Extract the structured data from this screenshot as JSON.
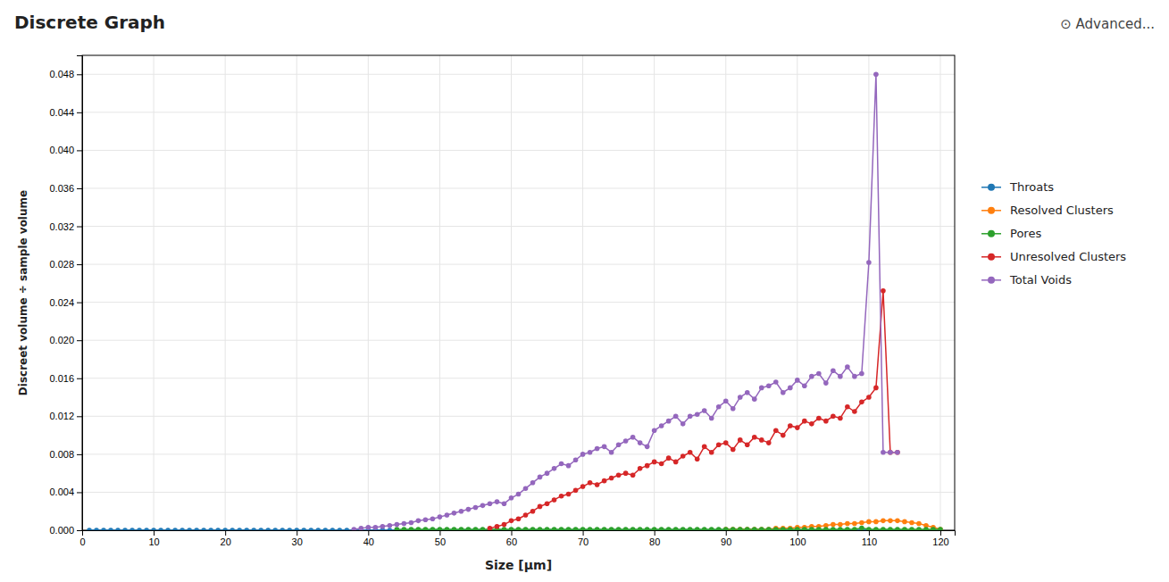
{
  "chart_data": {
    "type": "line",
    "title": "Discrete Graph",
    "annotations": [
      "⊙ Advanced..."
    ],
    "xlabel": "Size [μm]",
    "ylabel": "Discreet volume ÷ sample volume",
    "xlim": [
      0,
      122
    ],
    "ylim": [
      0,
      0.05
    ],
    "xticks": [
      0,
      10,
      20,
      30,
      40,
      50,
      60,
      70,
      80,
      90,
      100,
      110,
      120
    ],
    "yticks": [
      {
        "value": 0,
        "label": "0.000"
      },
      0.004,
      0.008,
      0.012,
      0.016,
      {
        "value": 0.02,
        "label": "0.020"
      },
      0.024,
      0.028,
      0.032,
      0.036,
      {
        "value": 0.04,
        "label": "0.040"
      },
      0.044,
      0.048
    ],
    "grid": true,
    "legend": "right",
    "marker": "circle",
    "series": [
      {
        "name": "Throats",
        "x": [
          1,
          2,
          3,
          4,
          5,
          6,
          7,
          8,
          9,
          10,
          11,
          12,
          13,
          14,
          15,
          16,
          17,
          18,
          19,
          20,
          21,
          22,
          23,
          24,
          25,
          26,
          27,
          28,
          29,
          30,
          31,
          32,
          33,
          34,
          35,
          36,
          37,
          38,
          39,
          40,
          41,
          42,
          43,
          44,
          45,
          46,
          47,
          48,
          49,
          50,
          51,
          52,
          53,
          54,
          55,
          56,
          57,
          58,
          59,
          60,
          61,
          62,
          63,
          64,
          65,
          66,
          67,
          68,
          69,
          70,
          71,
          72,
          73,
          74,
          75,
          76,
          77,
          78,
          79,
          80,
          81,
          82,
          83,
          84,
          85,
          86,
          87,
          88,
          89,
          90,
          91,
          92,
          93,
          94,
          95,
          96,
          97,
          98,
          99,
          100,
          101,
          102,
          103,
          104,
          105,
          106,
          107,
          108,
          109,
          110,
          111,
          112,
          113,
          114,
          115
        ],
        "values": [
          0,
          0,
          0,
          0,
          0,
          0,
          0,
          0,
          0,
          0,
          0,
          0,
          0,
          0,
          0,
          0,
          0,
          0,
          0,
          0,
          0,
          0,
          0,
          0,
          0,
          0,
          0,
          0,
          0,
          0,
          0,
          0,
          0,
          0,
          0,
          0,
          0,
          0,
          0,
          0,
          0,
          0,
          0,
          0,
          0,
          0,
          0,
          0,
          0,
          0,
          0,
          0,
          0,
          0,
          0,
          0,
          0,
          0,
          0,
          0,
          0,
          0,
          0,
          0,
          0,
          0,
          0,
          0,
          0,
          0,
          0,
          0,
          0,
          0,
          0,
          0,
          0,
          0,
          0,
          0,
          0,
          0,
          0,
          0,
          0,
          0,
          0,
          0,
          0,
          0,
          0,
          0,
          0,
          0,
          0,
          0,
          0,
          0,
          0,
          0,
          0,
          0,
          0,
          0,
          0,
          0,
          0,
          0,
          0,
          0,
          0,
          0,
          0,
          0,
          0
        ]
      },
      {
        "name": "Resolved Clusters",
        "x": [
          90,
          91,
          92,
          93,
          94,
          95,
          96,
          97,
          98,
          99,
          100,
          101,
          102,
          103,
          104,
          105,
          106,
          107,
          108,
          109,
          110,
          111,
          112,
          113,
          114,
          115,
          116,
          117,
          118,
          119,
          120
        ],
        "values": [
          0.0001,
          0.0001,
          0.0001,
          0.0001,
          0.0001,
          0.0001,
          0.0001,
          0.0002,
          0.0002,
          0.0002,
          0.0003,
          0.0003,
          0.0004,
          0.0004,
          0.0005,
          0.0006,
          0.0006,
          0.0007,
          0.0007,
          0.0008,
          0.0009,
          0.0009,
          0.001,
          0.001,
          0.001,
          0.0009,
          0.0008,
          0.0007,
          0.0005,
          0.0003,
          0.0001
        ]
      },
      {
        "name": "Pores",
        "x": [
          44,
          45,
          46,
          47,
          48,
          49,
          50,
          51,
          52,
          53,
          54,
          55,
          56,
          57,
          58,
          59,
          60,
          61,
          62,
          63,
          64,
          65,
          66,
          67,
          68,
          69,
          70,
          71,
          72,
          73,
          74,
          75,
          76,
          77,
          78,
          79,
          80,
          81,
          82,
          83,
          84,
          85,
          86,
          87,
          88,
          89,
          90,
          91,
          92,
          93,
          94,
          95,
          96,
          97,
          98,
          99,
          100,
          101,
          102,
          103,
          104,
          105,
          106,
          107,
          108,
          109,
          110,
          111,
          112,
          113,
          114,
          115,
          116,
          117,
          118,
          119,
          120
        ],
        "values": [
          8e-05,
          9e-05,
          9e-05,
          0.0001,
          0.0001,
          0.0001,
          0.0001,
          0.0001,
          0.0001,
          0.0001,
          0.0001,
          0.0001,
          0.0001,
          0.0001,
          0.0001,
          0.0001,
          0.0001,
          0.0001,
          0.0001,
          0.0001,
          0.0001,
          0.0001,
          0.0001,
          0.0001,
          0.0001,
          0.0001,
          0.0001,
          0.0001,
          0.0001,
          0.0001,
          0.0001,
          0.0001,
          0.0001,
          0.0001,
          0.0001,
          0.0001,
          0.0001,
          0.0001,
          0.0001,
          0.0001,
          0.0001,
          0.0001,
          0.0001,
          0.0001,
          0.0001,
          0.0001,
          0.0001,
          0.0001,
          0.0001,
          0.0001,
          0.0001,
          0.0001,
          0.0001,
          0.0001,
          0.0001,
          0.0001,
          0.0001,
          0.0001,
          0.0001,
          0.0001,
          0.0001,
          0.0001,
          0.0001,
          0.0001,
          0.0001,
          0.00023,
          0.0001,
          0.0001,
          0.0001,
          0.0001,
          0.0001,
          0.0001,
          0.0001,
          0.0001,
          0.0001,
          0.0001,
          0.0001
        ]
      },
      {
        "name": "Unresolved Clusters",
        "x": [
          57,
          58,
          59,
          60,
          61,
          62,
          63,
          64,
          65,
          66,
          67,
          68,
          69,
          70,
          71,
          72,
          73,
          74,
          75,
          76,
          77,
          78,
          79,
          80,
          81,
          82,
          83,
          84,
          85,
          86,
          87,
          88,
          89,
          90,
          91,
          92,
          93,
          94,
          95,
          96,
          97,
          98,
          99,
          100,
          101,
          102,
          103,
          104,
          105,
          106,
          107,
          108,
          109,
          110,
          111,
          112,
          113,
          114
        ],
        "values": [
          0.0002,
          0.0004,
          0.0006,
          0.001,
          0.0012,
          0.0016,
          0.002,
          0.0025,
          0.0028,
          0.0032,
          0.0036,
          0.0038,
          0.0042,
          0.0046,
          0.005,
          0.0048,
          0.0052,
          0.0055,
          0.0058,
          0.006,
          0.0058,
          0.0065,
          0.0068,
          0.0072,
          0.007,
          0.0076,
          0.0072,
          0.0078,
          0.0082,
          0.0075,
          0.0088,
          0.0082,
          0.009,
          0.0092,
          0.0085,
          0.0095,
          0.009,
          0.0098,
          0.0095,
          0.0092,
          0.0105,
          0.01,
          0.011,
          0.0108,
          0.0115,
          0.0112,
          0.0118,
          0.0115,
          0.012,
          0.0118,
          0.013,
          0.0125,
          0.0135,
          0.014,
          0.015,
          0.0252,
          0.0082,
          0.0082
        ]
      },
      {
        "name": "Total Voids",
        "x": [
          38,
          39,
          40,
          41,
          42,
          43,
          44,
          45,
          46,
          47,
          48,
          49,
          50,
          51,
          52,
          53,
          54,
          55,
          56,
          57,
          58,
          59,
          60,
          61,
          62,
          63,
          64,
          65,
          66,
          67,
          68,
          69,
          70,
          71,
          72,
          73,
          74,
          75,
          76,
          77,
          78,
          79,
          80,
          81,
          82,
          83,
          84,
          85,
          86,
          87,
          88,
          89,
          90,
          91,
          92,
          93,
          94,
          95,
          96,
          97,
          98,
          99,
          100,
          101,
          102,
          103,
          104,
          105,
          106,
          107,
          108,
          109,
          110,
          111,
          112,
          113,
          114
        ],
        "values": [
          0.0001,
          0.0002,
          0.0003,
          0.0003,
          0.0004,
          0.0005,
          0.0006,
          0.0007,
          0.0008,
          0.001,
          0.0011,
          0.0012,
          0.0014,
          0.0016,
          0.0018,
          0.002,
          0.0022,
          0.0024,
          0.0026,
          0.0028,
          0.003,
          0.0028,
          0.0034,
          0.0038,
          0.0044,
          0.005,
          0.0056,
          0.006,
          0.0065,
          0.007,
          0.0068,
          0.0074,
          0.008,
          0.0082,
          0.0086,
          0.0088,
          0.0082,
          0.009,
          0.0094,
          0.0098,
          0.0092,
          0.0088,
          0.0105,
          0.011,
          0.0115,
          0.012,
          0.0112,
          0.012,
          0.0122,
          0.0126,
          0.0118,
          0.013,
          0.0136,
          0.0128,
          0.014,
          0.0145,
          0.0138,
          0.015,
          0.0152,
          0.0156,
          0.0145,
          0.015,
          0.0158,
          0.0152,
          0.0162,
          0.0165,
          0.0155,
          0.0168,
          0.0162,
          0.0172,
          0.0162,
          0.0165,
          0.0282,
          0.048,
          0.0082,
          0.0082,
          0.0082
        ]
      }
    ]
  }
}
